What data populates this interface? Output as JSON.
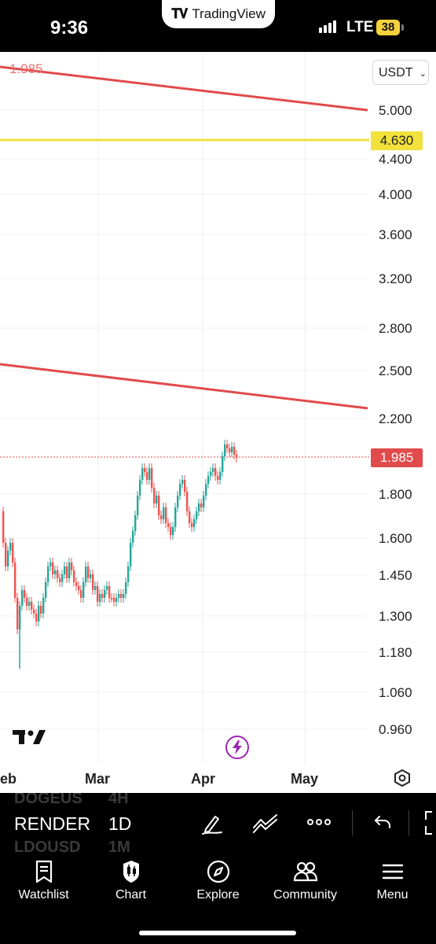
{
  "status_bar": {
    "time": "9:36",
    "app_pill": "TradingView",
    "network": "LTE",
    "battery": "38"
  },
  "chart": {
    "quote_currency": "USDT",
    "price_scale": [
      "5.000",
      "4.400",
      "4.000",
      "3.600",
      "3.200",
      "2.800",
      "2.500",
      "2.200",
      "1.800",
      "1.600",
      "1.450",
      "1.300",
      "1.180",
      "1.060",
      "0.960"
    ],
    "line_badge": "4.630",
    "last_price_badge": "1.985",
    "top_left_label": "1.985",
    "time_scale": [
      "eb",
      "Mar",
      "Apr",
      "May"
    ],
    "colors": {
      "up": "#26a69a",
      "down": "#ef5350",
      "trendline": "#e14b4b",
      "level_line": "#f2e13c",
      "lightning": "#9c27b0"
    }
  },
  "toolbar": {
    "symbol": "RENDER",
    "interval": "1D",
    "ghost_symbol_above": "DOGEUS",
    "ghost_symbol_below": "LDOUSD",
    "ghost_interval_above": "4H",
    "ghost_interval_below": "1M",
    "icons": [
      "drawing-pen-icon",
      "indicator-icon",
      "more-icon",
      "undo-icon",
      "fullscreen-icon"
    ]
  },
  "tabs": [
    {
      "label": "Watchlist",
      "icon": "watchlist-icon"
    },
    {
      "label": "Chart",
      "icon": "chart-icon"
    },
    {
      "label": "Explore",
      "icon": "compass-icon"
    },
    {
      "label": "Community",
      "icon": "community-icon"
    },
    {
      "label": "Menu",
      "icon": "menu-icon"
    }
  ]
}
